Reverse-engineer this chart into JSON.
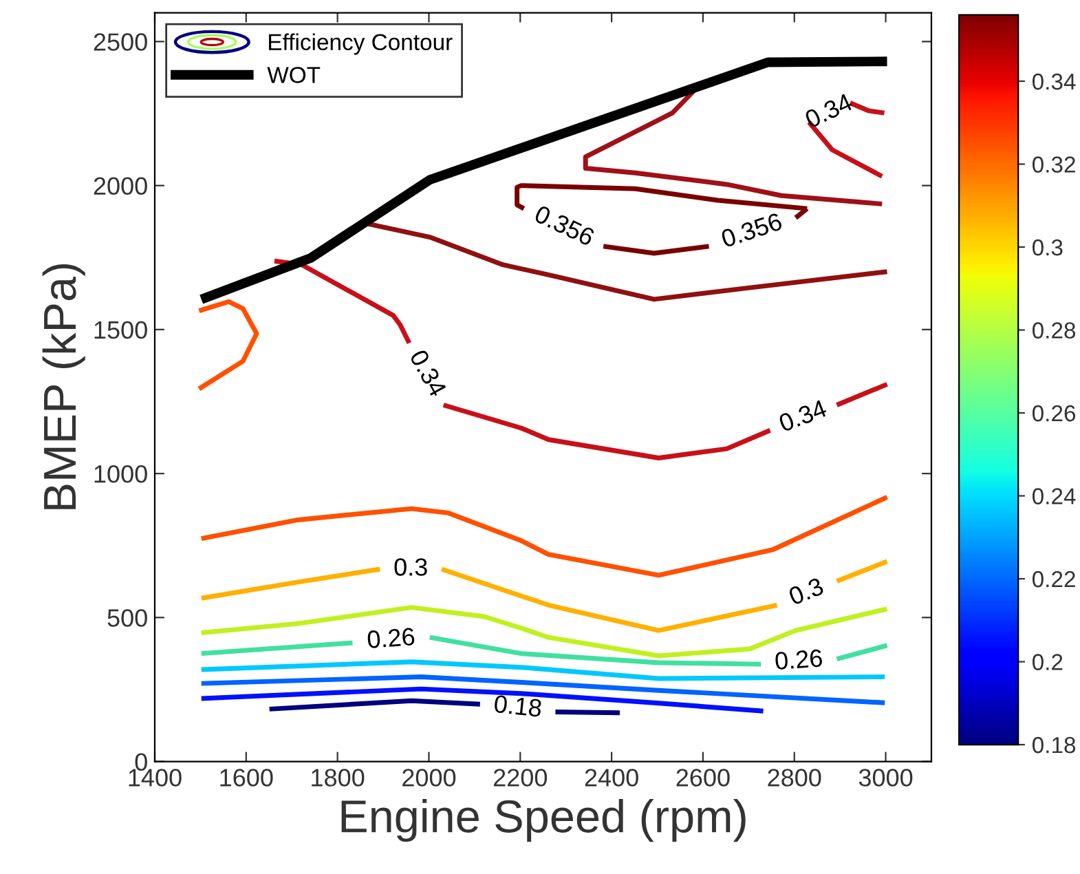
{
  "chart_data": {
    "type": "line",
    "xlabel": "Engine Speed (rpm)",
    "ylabel": "BMEP (kPa)",
    "xlim": [
      1400,
      3100
    ],
    "xticks": [
      1400,
      1600,
      1800,
      2000,
      2200,
      2400,
      2600,
      2800,
      3000
    ],
    "ylim": [
      0,
      2600
    ],
    "yticks": [
      0,
      500,
      1000,
      1500,
      2000,
      2500
    ],
    "clim": [
      0.18,
      0.356
    ],
    "cticks": [
      0.18,
      0.2,
      0.22,
      0.24,
      0.26,
      0.28,
      0.3,
      0.32,
      0.34
    ],
    "legend": "top left",
    "grid": false,
    "marker": "none",
    "line_style": "solid",
    "series": [
      {
        "name": "Efficiency Contour",
        "color": "#00007f",
        "x": [
          1651,
          1962,
          2112,
          2190,
          2277,
          2418
        ],
        "values": [
          182,
          211,
          199,
          null,
          172,
          169
        ]
      },
      {
        "color": "#0010ff",
        "x": [
          1502,
          1983,
          2202,
          2493,
          2732
        ],
        "values": [
          219,
          252,
          236,
          204,
          175
        ]
      },
      {
        "color": "#0064ff",
        "x": [
          1502,
          1983,
          2202,
          2503,
          2998
        ],
        "values": [
          271,
          294,
          275,
          247,
          204
        ]
      },
      {
        "color": "#00c8ff",
        "x": [
          1502,
          1962,
          2202,
          2503,
          2998
        ],
        "values": [
          319,
          346,
          327,
          288,
          294
        ]
      },
      {
        "color": "#40e0a0",
        "x": [
          1502,
          1833,
          1912,
          2002,
          2202,
          2503,
          2727,
          2807,
          2893,
          3003
        ],
        "values": [
          375,
          412,
          null,
          431,
          375,
          343,
          338,
          null,
          356,
          403
        ]
      },
      {
        "color": "#c0f020",
        "x": [
          1502,
          1713,
          1962,
          2122,
          2202,
          2262,
          2503,
          2702,
          2803,
          3003
        ],
        "values": [
          447,
          479,
          535,
          503,
          463,
          431,
          367,
          391,
          455,
          530
        ]
      },
      {
        "color": "#ffb000",
        "x": [
          1502,
          1713,
          1893,
          1960,
          2028,
          2202,
          2262,
          2503,
          2762,
          2827,
          2893,
          3003
        ],
        "values": [
          567,
          623,
          668,
          null,
          668,
          575,
          543,
          455,
          543,
          null,
          626,
          695
        ]
      },
      {
        "color": "#ff5000",
        "x": [
          1502,
          1713,
          1962,
          2043,
          2202,
          2262,
          2503,
          2752,
          3003
        ],
        "values": [
          774,
          839,
          878,
          863,
          767,
          719,
          647,
          735,
          918
        ]
      },
      {
        "color": "#ff5000",
        "x": [
          1497,
          1562,
          1593,
          1623,
          1593,
          1497
        ],
        "values": [
          1565,
          1597,
          1573,
          1486,
          1390,
          1294
        ]
      },
      {
        "color": "#c81018",
        "x": [
          1662,
          1722,
          1922,
          1937,
          1957,
          1977,
          2032,
          2202,
          2262,
          2503,
          2652,
          2747,
          2817,
          2893,
          3003
        ],
        "values": [
          1738,
          1725,
          1549,
          1517,
          1453,
          null,
          1238,
          1158,
          1118,
          1054,
          1086,
          1150,
          null,
          1238,
          1310
        ]
      },
      {
        "color": "#c81018",
        "x": [
          2997,
          2962,
          2922,
          2862,
          2832,
          2883,
          2992
        ],
        "values": [
          2252,
          2260,
          2287,
          null,
          2220,
          2124,
          2032
        ]
      },
      {
        "color": "#a01018",
        "x": [
          2587,
          2533,
          2493,
          2343,
          2343,
          2452,
          2652,
          2772,
          2992
        ],
        "values": [
          2340,
          2252,
          2220,
          2100,
          2060,
          2044,
          2004,
          1965,
          1936
        ]
      },
      {
        "color": "#901010",
        "x": [
          1852,
          2002,
          2162,
          2262,
          2493,
          2702,
          3003
        ],
        "values": [
          1872,
          1821,
          1725,
          1690,
          1605,
          1645,
          1701
        ]
      },
      {
        "color": "#7a0000",
        "x": [
          2828,
          2632,
          2452,
          2202,
          2193,
          2193,
          2208,
          2287,
          2382,
          2493,
          2613,
          2707,
          2803,
          2828
        ],
        "values": [
          1920,
          1949,
          1989,
          2000,
          1994,
          1933,
          1920,
          null,
          1789,
          1765,
          1789,
          null,
          1888,
          1920
        ]
      },
      {
        "name": "WOT",
        "color": "#000000",
        "x": [
          1502,
          1742,
          2002,
          2742,
          3003
        ],
        "values": [
          1605,
          1749,
          2020,
          2428,
          2431
        ]
      }
    ],
    "annotations": [
      {
        "text": "0.18",
        "x": 2112,
        "y": 199
      },
      {
        "text": "0.26",
        "x": 1833,
        "y": 412
      },
      {
        "text": "0.26",
        "x": 2727,
        "y": 338
      },
      {
        "text": "0.3",
        "x": 1893,
        "y": 668
      },
      {
        "text": "0.3",
        "x": 2762,
        "y": 543
      },
      {
        "text": "0.34",
        "x": 1957,
        "y": 1453
      },
      {
        "text": "0.34",
        "x": 2747,
        "y": 1150
      },
      {
        "text": "0.34",
        "x": 2922,
        "y": 2287
      },
      {
        "text": "0.356",
        "x": 2208,
        "y": 1920
      },
      {
        "text": "0.356",
        "x": 2613,
        "y": 1789
      }
    ]
  }
}
